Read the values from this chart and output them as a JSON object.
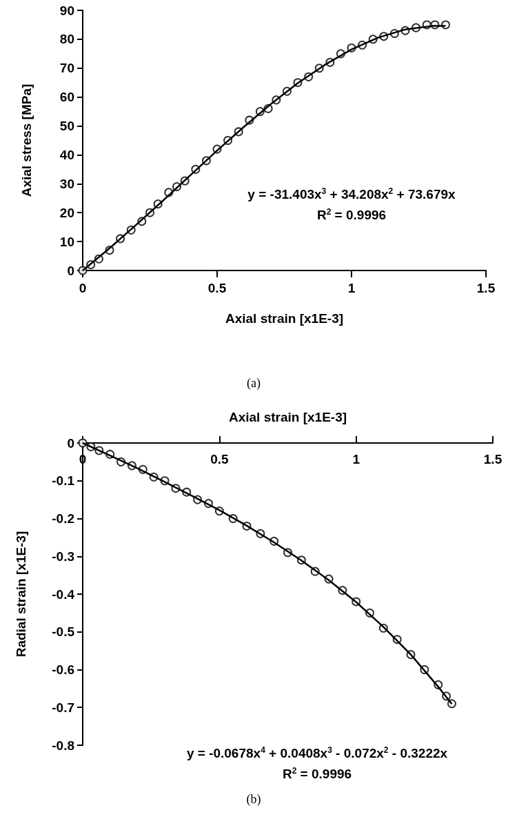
{
  "chart_data": [
    {
      "type": "scatter",
      "xlabel": "Axial strain [x1E-3]",
      "ylabel": "Axial stress [MPa]",
      "xlim": [
        0,
        1.5
      ],
      "xticks": [
        0,
        0.5,
        1,
        1.5
      ],
      "ylim": [
        0,
        90
      ],
      "yticks": [
        0,
        10,
        20,
        30,
        40,
        50,
        60,
        70,
        80,
        90
      ],
      "grid": false,
      "marker": "circle",
      "annotations": [
        "y = -31.403x$^{3}$ + 34.208x$^{2}$ + 73.679x",
        "R$^{2}$ = 0.9996",
        "(a)"
      ],
      "series": [
        {
          "color": "#000000",
          "x": [
            0,
            0.03,
            0.06,
            0.1,
            0.14,
            0.18,
            0.22,
            0.25,
            0.28,
            0.32,
            0.35,
            0.38,
            0.42,
            0.46,
            0.5,
            0.54,
            0.58,
            0.62,
            0.66,
            0.69,
            0.72,
            0.76,
            0.8,
            0.84,
            0.88,
            0.92,
            0.96,
            1.0,
            1.04,
            1.08,
            1.12,
            1.16,
            1.2,
            1.24,
            1.28,
            1.31,
            1.35
          ],
          "values": [
            0,
            2,
            4,
            7,
            11,
            14,
            17,
            20,
            23,
            27,
            29,
            31,
            35,
            38,
            42,
            45,
            48,
            52,
            55,
            56,
            59,
            62,
            65,
            67,
            70,
            72,
            75,
            77,
            78,
            80,
            81,
            82,
            83,
            84,
            85,
            85,
            85
          ]
        },
        {
          "type": "line",
          "color": "#000000",
          "line_style": "solid",
          "marker": "none",
          "x": [
            0,
            0.1,
            0.2,
            0.3,
            0.4,
            0.5,
            0.6,
            0.7,
            0.8,
            0.9,
            1.0,
            1.1,
            1.2,
            1.3,
            1.35
          ],
          "values": [
            0,
            7.7,
            15.9,
            24.3,
            32.9,
            41.5,
            49.7,
            57.6,
            64.8,
            71.1,
            76.5,
            80.6,
            83.4,
            84.6,
            84.6
          ]
        }
      ]
    },
    {
      "type": "scatter",
      "xlabel": "Axial strain [x1E-3]",
      "ylabel": "Radial strain [x1E-3]",
      "xlim": [
        0,
        1.5
      ],
      "xticks": [
        0,
        0.5,
        1,
        1.5
      ],
      "ylim": [
        -0.8,
        0
      ],
      "yticks": [
        -0.8,
        -0.7,
        -0.6,
        -0.5,
        -0.4,
        -0.3,
        -0.2,
        -0.1,
        0
      ],
      "grid": false,
      "marker": "circle",
      "annotations": [
        "y = -0.0678x$^{4}$ + 0.0408x$^{3}$ - 0.072x$^{2}$ - 0.3222x",
        "R$^{2}$ = 0.9996",
        "(b)"
      ],
      "series": [
        {
          "color": "#000000",
          "x": [
            0,
            0.03,
            0.06,
            0.1,
            0.14,
            0.18,
            0.22,
            0.26,
            0.3,
            0.34,
            0.38,
            0.42,
            0.46,
            0.5,
            0.55,
            0.6,
            0.65,
            0.7,
            0.75,
            0.8,
            0.85,
            0.9,
            0.95,
            1.0,
            1.05,
            1.1,
            1.15,
            1.2,
            1.25,
            1.3,
            1.33,
            1.35
          ],
          "values": [
            0,
            -0.01,
            -0.02,
            -0.03,
            -0.05,
            -0.06,
            -0.07,
            -0.09,
            -0.1,
            -0.12,
            -0.13,
            -0.15,
            -0.16,
            -0.18,
            -0.2,
            -0.22,
            -0.24,
            -0.26,
            -0.29,
            -0.31,
            -0.34,
            -0.36,
            -0.39,
            -0.42,
            -0.45,
            -0.49,
            -0.52,
            -0.56,
            -0.6,
            -0.64,
            -0.67,
            -0.69
          ]
        },
        {
          "type": "line",
          "color": "#000000",
          "line_style": "solid",
          "marker": "none",
          "x": [
            0,
            0.1,
            0.2,
            0.3,
            0.4,
            0.5,
            0.6,
            0.7,
            0.8,
            0.9,
            1.0,
            1.1,
            1.2,
            1.3,
            1.35
          ],
          "values": [
            0,
            -0.033,
            -0.067,
            -0.103,
            -0.14,
            -0.178,
            -0.219,
            -0.263,
            -0.311,
            -0.363,
            -0.421,
            -0.487,
            -0.56,
            -0.645,
            -0.691
          ]
        }
      ]
    }
  ]
}
